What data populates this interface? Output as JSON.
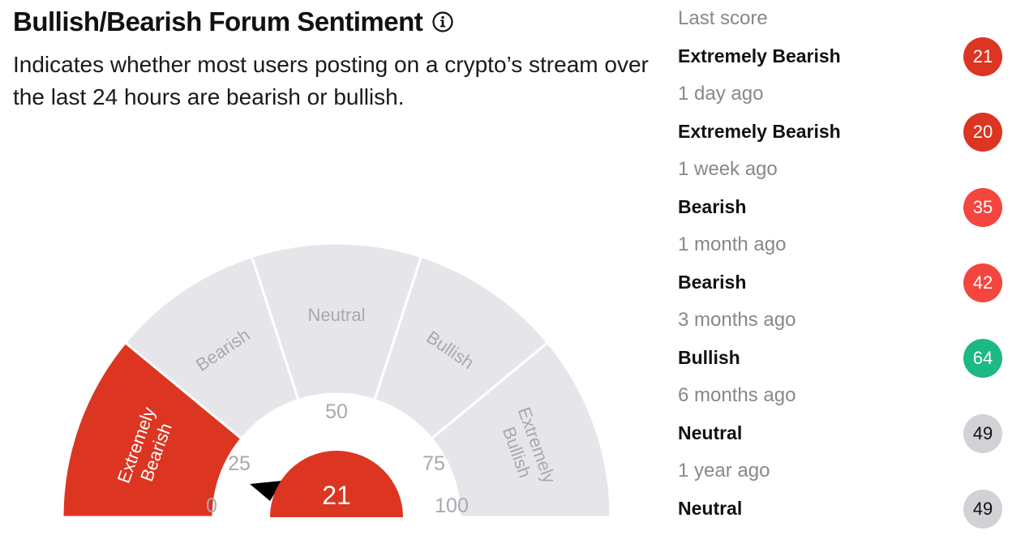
{
  "header": {
    "title": "Bullish/Bearish Forum Sentiment",
    "description": "Indicates whether most users posting on a crypto’s stream over the last 24 hours are bearish or bullish.",
    "info_icon": "info-icon"
  },
  "gauge": {
    "value": 21,
    "zones": [
      "Extremely Bearish",
      "Bearish",
      "Neutral",
      "Bullish",
      "Extremely Bullish"
    ],
    "active_zone": "Extremely Bearish",
    "ticks": [
      "0",
      "25",
      "50",
      "75",
      "100"
    ],
    "colors": {
      "active": "#dc3522",
      "inactive": "#e6e6ea",
      "inactive_text": "#a8a8b0",
      "pointer": "#000000"
    }
  },
  "history": [
    {
      "time": "Last score",
      "label": "Extremely Bearish",
      "score": "21",
      "color": "#dc3522"
    },
    {
      "time": "1 day ago",
      "label": "Extremely Bearish",
      "score": "20",
      "color": "#dc3522"
    },
    {
      "time": "1 week ago",
      "label": "Bearish",
      "score": "35",
      "color": "#f4453f"
    },
    {
      "time": "1 month ago",
      "label": "Bearish",
      "score": "42",
      "color": "#f4453f"
    },
    {
      "time": "3 months ago",
      "label": "Bullish",
      "score": "64",
      "color": "#1cb886"
    },
    {
      "time": "6 months ago",
      "label": "Neutral",
      "score": "49",
      "color": "#d1d1d6"
    },
    {
      "time": "1 year ago",
      "label": "Neutral",
      "score": "49",
      "color": "#d1d1d6"
    }
  ]
}
